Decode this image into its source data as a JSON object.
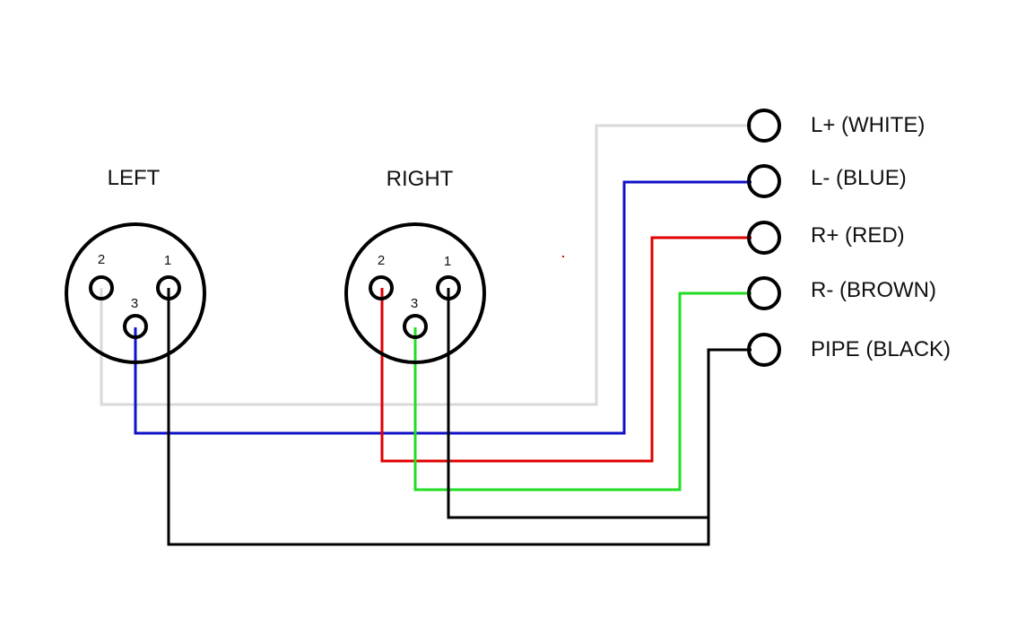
{
  "connectors": [
    {
      "id": "left",
      "title": "LEFT",
      "pins": [
        {
          "num": "2"
        },
        {
          "num": "1"
        },
        {
          "num": "3"
        }
      ]
    },
    {
      "id": "right",
      "title": "RIGHT",
      "pins": [
        {
          "num": "2"
        },
        {
          "num": "1"
        },
        {
          "num": "3"
        }
      ]
    }
  ],
  "terminals": [
    {
      "label": "L+ (WHITE)"
    },
    {
      "label": "L- (BLUE)"
    },
    {
      "label": "R+ (RED)"
    },
    {
      "label": "R- (BROWN)"
    },
    {
      "label": "PIPE (BLACK)"
    }
  ],
  "wires": [
    {
      "name": "white",
      "from": "LEFT pin 2",
      "to": "L+ (WHITE)",
      "color": "#d9d9d9"
    },
    {
      "name": "blue",
      "from": "LEFT pin 3",
      "to": "L- (BLUE)",
      "color": "#1010c8"
    },
    {
      "name": "red",
      "from": "RIGHT pin 2",
      "to": "R+ (RED)",
      "color": "#e00000"
    },
    {
      "name": "green",
      "from": "RIGHT pin 3",
      "to": "R- (BROWN)",
      "color": "#22dd22"
    },
    {
      "name": "black-right",
      "from": "RIGHT pin 1",
      "to": "PIPE (BLACK)",
      "color": "#000000"
    },
    {
      "name": "black-left",
      "from": "LEFT pin 1",
      "to": "PIPE (BLACK)",
      "color": "#000000"
    }
  ]
}
